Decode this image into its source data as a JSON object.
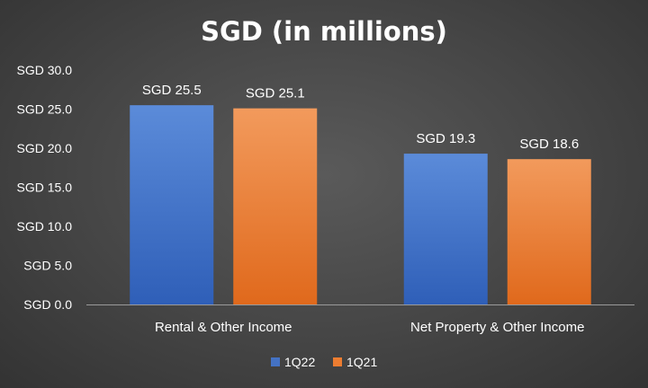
{
  "chart_data": {
    "type": "bar",
    "title": "SGD (in millions)",
    "xlabel": "",
    "ylabel": "",
    "categories": [
      "Rental & Other Income",
      "Net Property & Other Income"
    ],
    "series": [
      {
        "name": "1Q22",
        "values": [
          25.5,
          19.3
        ],
        "labels": [
          "SGD 25.5",
          "SGD 19.3"
        ],
        "color": "#4472c4"
      },
      {
        "name": "1Q21",
        "values": [
          25.1,
          18.6
        ],
        "labels": [
          "SGD 25.1",
          "SGD 18.6"
        ],
        "color": "#ed7d31"
      }
    ],
    "ylim": [
      0,
      30
    ],
    "yticks": [
      0,
      5,
      10,
      15,
      20,
      25,
      30
    ],
    "ytick_labels": [
      "SGD 0.0",
      "SGD 5.0",
      "SGD 10.0",
      "SGD 15.0",
      "SGD 20.0",
      "SGD 25.0",
      "SGD 30.0"
    ],
    "grid": false,
    "legend_position": "bottom",
    "background_color": "#454545",
    "text_color": "#ffffff"
  }
}
